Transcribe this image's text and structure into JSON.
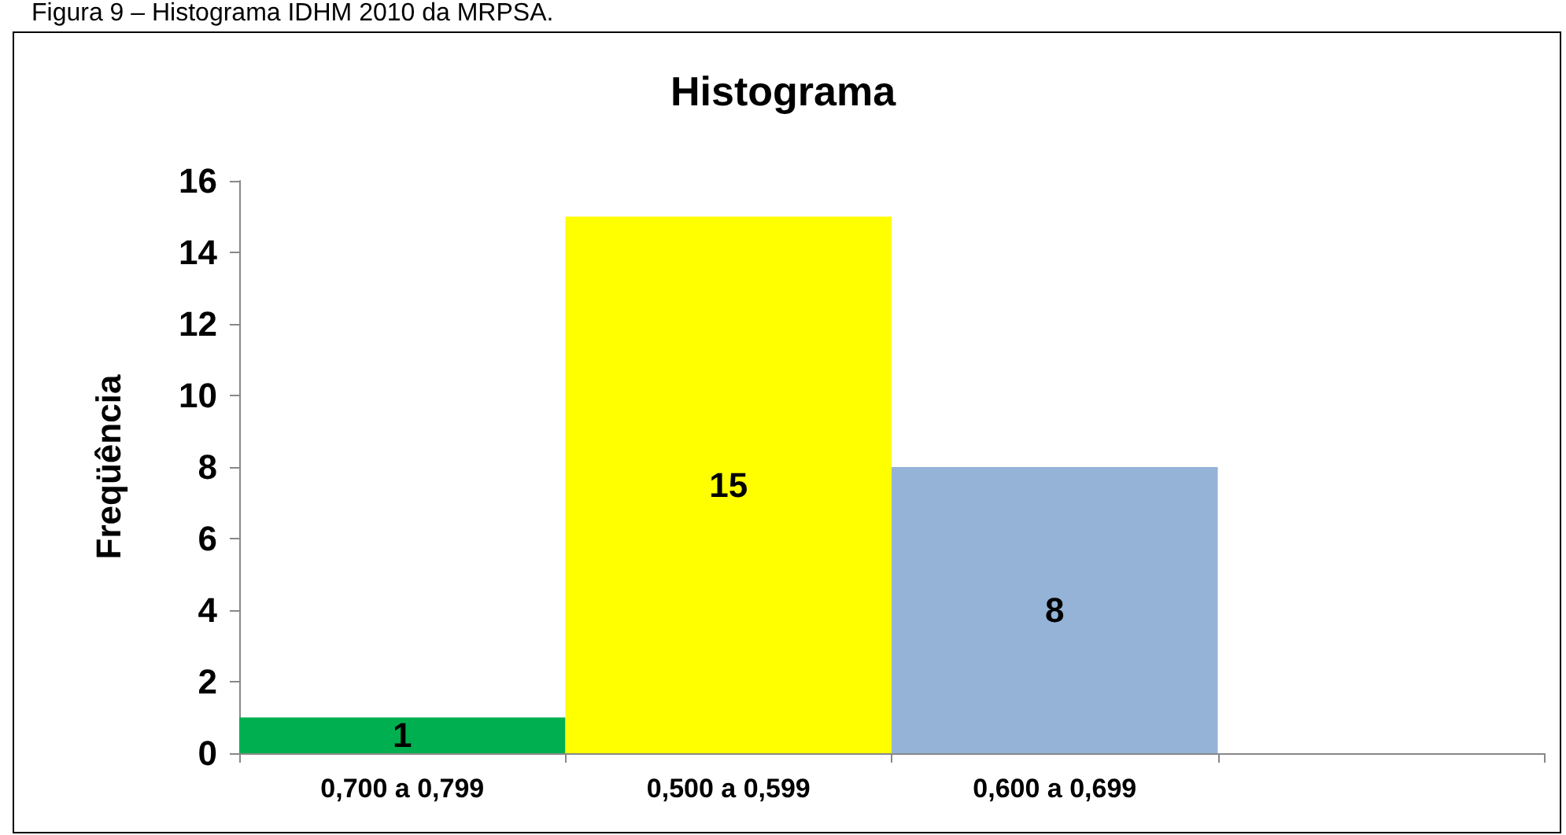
{
  "chart_data": {
    "type": "bar",
    "title": "Histograma",
    "ylabel": "Freqüência",
    "annotations": [
      "Figura 9 – Histograma IDHM 2010 da MRPSA."
    ],
    "categories": [
      "0,700 a 0,799",
      "0,500 a 0,599",
      "0,600 a 0,699",
      null
    ],
    "values": [
      1,
      15,
      8,
      null
    ],
    "colors": [
      "#00b050",
      "#ffff00",
      "#95b3d7",
      "#95b3d7"
    ],
    "ylim": [
      0,
      16
    ],
    "yticks": [
      0,
      2,
      4,
      6,
      8,
      10,
      12,
      14,
      16
    ],
    "data_labels": true
  }
}
